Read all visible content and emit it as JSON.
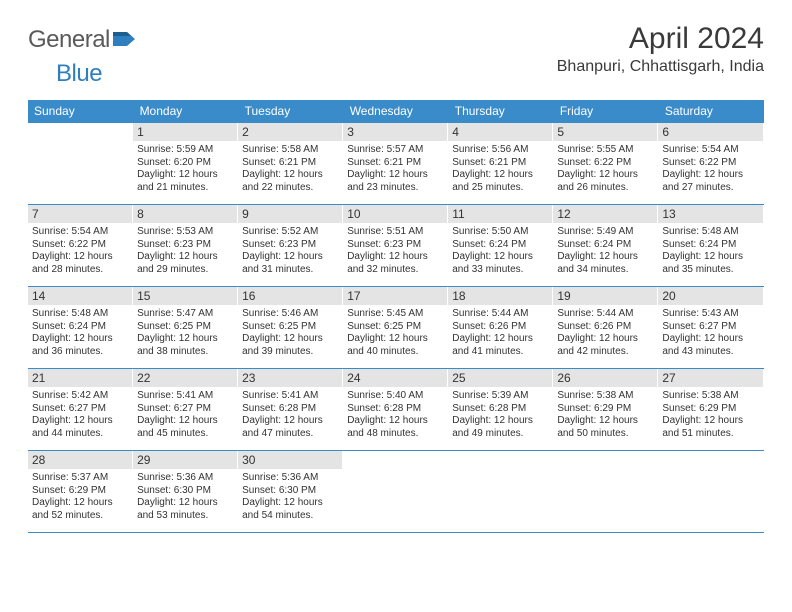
{
  "logo": {
    "text1": "General",
    "text2": "Blue"
  },
  "title": "April 2024",
  "location": "Bhanpuri, Chhattisgarh, India",
  "header_bg": "#3a8bc9",
  "daynum_bg": "#e4e4e4",
  "weekdays": [
    "Sunday",
    "Monday",
    "Tuesday",
    "Wednesday",
    "Thursday",
    "Friday",
    "Saturday"
  ],
  "weeks": [
    [
      null,
      {
        "n": "1",
        "sr": "Sunrise: 5:59 AM",
        "ss": "Sunset: 6:20 PM",
        "d1": "Daylight: 12 hours",
        "d2": "and 21 minutes."
      },
      {
        "n": "2",
        "sr": "Sunrise: 5:58 AM",
        "ss": "Sunset: 6:21 PM",
        "d1": "Daylight: 12 hours",
        "d2": "and 22 minutes."
      },
      {
        "n": "3",
        "sr": "Sunrise: 5:57 AM",
        "ss": "Sunset: 6:21 PM",
        "d1": "Daylight: 12 hours",
        "d2": "and 23 minutes."
      },
      {
        "n": "4",
        "sr": "Sunrise: 5:56 AM",
        "ss": "Sunset: 6:21 PM",
        "d1": "Daylight: 12 hours",
        "d2": "and 25 minutes."
      },
      {
        "n": "5",
        "sr": "Sunrise: 5:55 AM",
        "ss": "Sunset: 6:22 PM",
        "d1": "Daylight: 12 hours",
        "d2": "and 26 minutes."
      },
      {
        "n": "6",
        "sr": "Sunrise: 5:54 AM",
        "ss": "Sunset: 6:22 PM",
        "d1": "Daylight: 12 hours",
        "d2": "and 27 minutes."
      }
    ],
    [
      {
        "n": "7",
        "sr": "Sunrise: 5:54 AM",
        "ss": "Sunset: 6:22 PM",
        "d1": "Daylight: 12 hours",
        "d2": "and 28 minutes."
      },
      {
        "n": "8",
        "sr": "Sunrise: 5:53 AM",
        "ss": "Sunset: 6:23 PM",
        "d1": "Daylight: 12 hours",
        "d2": "and 29 minutes."
      },
      {
        "n": "9",
        "sr": "Sunrise: 5:52 AM",
        "ss": "Sunset: 6:23 PM",
        "d1": "Daylight: 12 hours",
        "d2": "and 31 minutes."
      },
      {
        "n": "10",
        "sr": "Sunrise: 5:51 AM",
        "ss": "Sunset: 6:23 PM",
        "d1": "Daylight: 12 hours",
        "d2": "and 32 minutes."
      },
      {
        "n": "11",
        "sr": "Sunrise: 5:50 AM",
        "ss": "Sunset: 6:24 PM",
        "d1": "Daylight: 12 hours",
        "d2": "and 33 minutes."
      },
      {
        "n": "12",
        "sr": "Sunrise: 5:49 AM",
        "ss": "Sunset: 6:24 PM",
        "d1": "Daylight: 12 hours",
        "d2": "and 34 minutes."
      },
      {
        "n": "13",
        "sr": "Sunrise: 5:48 AM",
        "ss": "Sunset: 6:24 PM",
        "d1": "Daylight: 12 hours",
        "d2": "and 35 minutes."
      }
    ],
    [
      {
        "n": "14",
        "sr": "Sunrise: 5:48 AM",
        "ss": "Sunset: 6:24 PM",
        "d1": "Daylight: 12 hours",
        "d2": "and 36 minutes."
      },
      {
        "n": "15",
        "sr": "Sunrise: 5:47 AM",
        "ss": "Sunset: 6:25 PM",
        "d1": "Daylight: 12 hours",
        "d2": "and 38 minutes."
      },
      {
        "n": "16",
        "sr": "Sunrise: 5:46 AM",
        "ss": "Sunset: 6:25 PM",
        "d1": "Daylight: 12 hours",
        "d2": "and 39 minutes."
      },
      {
        "n": "17",
        "sr": "Sunrise: 5:45 AM",
        "ss": "Sunset: 6:25 PM",
        "d1": "Daylight: 12 hours",
        "d2": "and 40 minutes."
      },
      {
        "n": "18",
        "sr": "Sunrise: 5:44 AM",
        "ss": "Sunset: 6:26 PM",
        "d1": "Daylight: 12 hours",
        "d2": "and 41 minutes."
      },
      {
        "n": "19",
        "sr": "Sunrise: 5:44 AM",
        "ss": "Sunset: 6:26 PM",
        "d1": "Daylight: 12 hours",
        "d2": "and 42 minutes."
      },
      {
        "n": "20",
        "sr": "Sunrise: 5:43 AM",
        "ss": "Sunset: 6:27 PM",
        "d1": "Daylight: 12 hours",
        "d2": "and 43 minutes."
      }
    ],
    [
      {
        "n": "21",
        "sr": "Sunrise: 5:42 AM",
        "ss": "Sunset: 6:27 PM",
        "d1": "Daylight: 12 hours",
        "d2": "and 44 minutes."
      },
      {
        "n": "22",
        "sr": "Sunrise: 5:41 AM",
        "ss": "Sunset: 6:27 PM",
        "d1": "Daylight: 12 hours",
        "d2": "and 45 minutes."
      },
      {
        "n": "23",
        "sr": "Sunrise: 5:41 AM",
        "ss": "Sunset: 6:28 PM",
        "d1": "Daylight: 12 hours",
        "d2": "and 47 minutes."
      },
      {
        "n": "24",
        "sr": "Sunrise: 5:40 AM",
        "ss": "Sunset: 6:28 PM",
        "d1": "Daylight: 12 hours",
        "d2": "and 48 minutes."
      },
      {
        "n": "25",
        "sr": "Sunrise: 5:39 AM",
        "ss": "Sunset: 6:28 PM",
        "d1": "Daylight: 12 hours",
        "d2": "and 49 minutes."
      },
      {
        "n": "26",
        "sr": "Sunrise: 5:38 AM",
        "ss": "Sunset: 6:29 PM",
        "d1": "Daylight: 12 hours",
        "d2": "and 50 minutes."
      },
      {
        "n": "27",
        "sr": "Sunrise: 5:38 AM",
        "ss": "Sunset: 6:29 PM",
        "d1": "Daylight: 12 hours",
        "d2": "and 51 minutes."
      }
    ],
    [
      {
        "n": "28",
        "sr": "Sunrise: 5:37 AM",
        "ss": "Sunset: 6:29 PM",
        "d1": "Daylight: 12 hours",
        "d2": "and 52 minutes."
      },
      {
        "n": "29",
        "sr": "Sunrise: 5:36 AM",
        "ss": "Sunset: 6:30 PM",
        "d1": "Daylight: 12 hours",
        "d2": "and 53 minutes."
      },
      {
        "n": "30",
        "sr": "Sunrise: 5:36 AM",
        "ss": "Sunset: 6:30 PM",
        "d1": "Daylight: 12 hours",
        "d2": "and 54 minutes."
      },
      null,
      null,
      null,
      null
    ]
  ]
}
